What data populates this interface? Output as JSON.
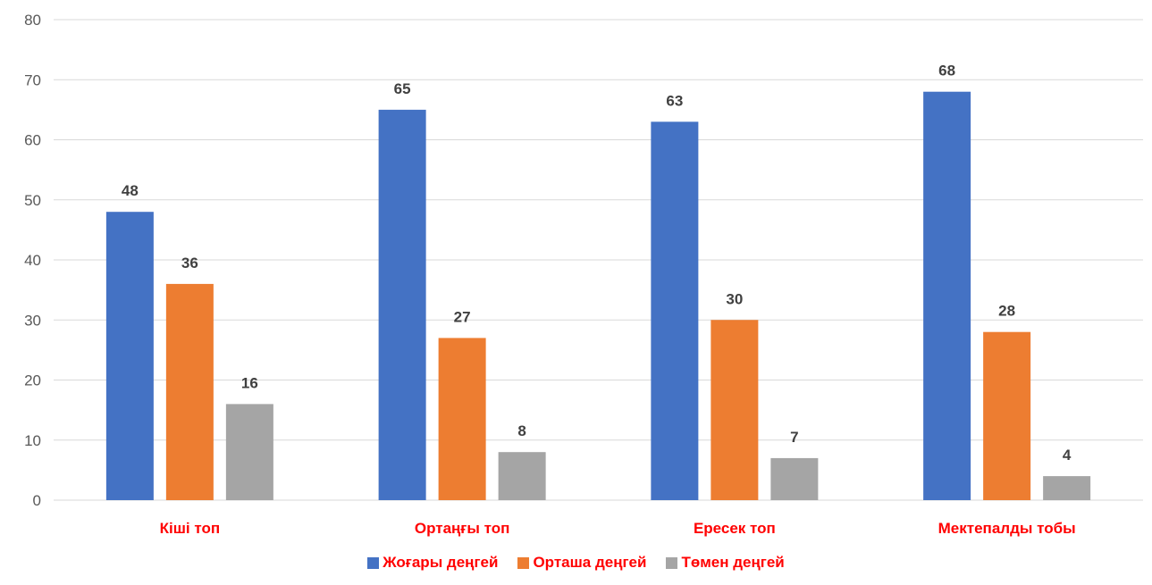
{
  "chart_data": {
    "type": "bar",
    "categories": [
      "Кіші топ",
      "Ортаңғы топ",
      "Ересек топ",
      "Мектепалды тобы"
    ],
    "series": [
      {
        "name": "Жоғары деңгей",
        "values": [
          48,
          65,
          63,
          68
        ],
        "color": "#4472C4"
      },
      {
        "name": "Орташа деңгей",
        "values": [
          36,
          27,
          30,
          28
        ],
        "color": "#ED7D31"
      },
      {
        "name": "Төмен деңгей",
        "values": [
          16,
          8,
          7,
          4
        ],
        "color": "#A5A5A5"
      }
    ],
    "ylim": [
      0,
      80
    ],
    "yticks": [
      "0",
      "10",
      "20",
      "30",
      "40",
      "50",
      "60",
      "70",
      "80"
    ],
    "grid": true,
    "legend_position": "bottom",
    "label_color": "#FF0000",
    "data_labels": true
  }
}
